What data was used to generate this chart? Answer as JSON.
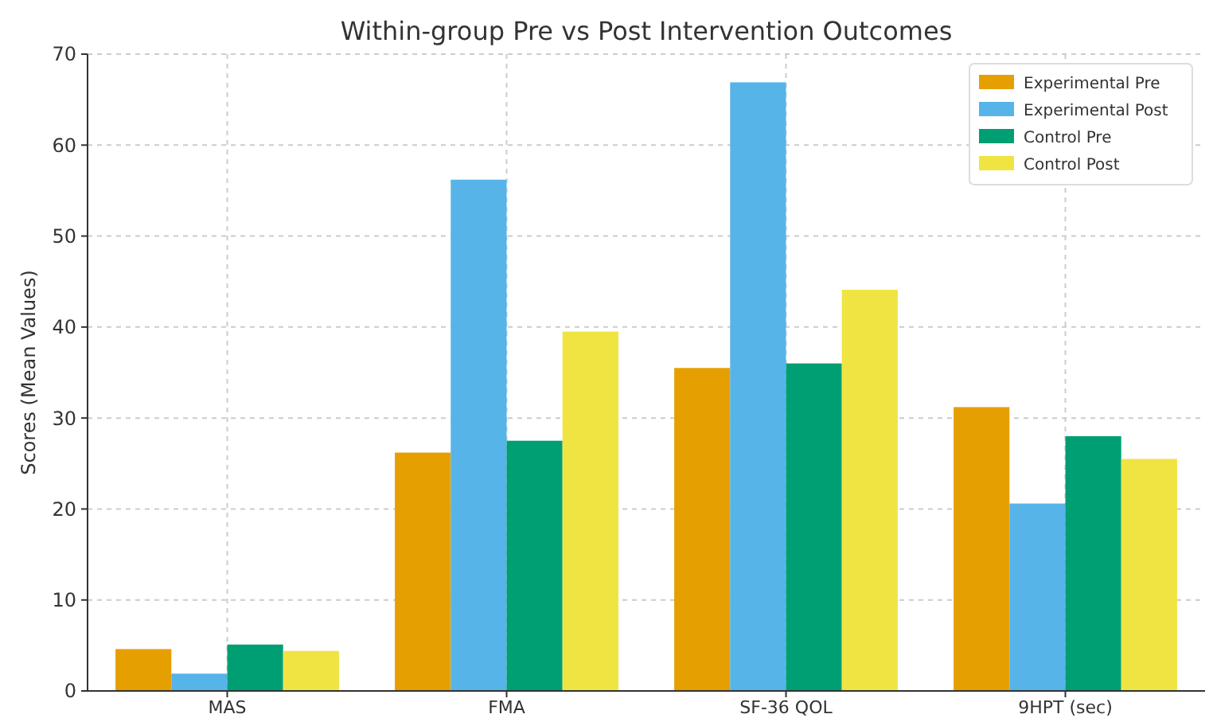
{
  "chart_data": {
    "type": "bar",
    "title": "Within-group Pre vs Post Intervention Outcomes",
    "ylabel": "Scores (Mean Values)",
    "categories": [
      "MAS",
      "FMA",
      "SF-36 QOL",
      "9HPT (sec)"
    ],
    "series": [
      {
        "name": "Experimental Pre",
        "color": "#e69f00",
        "values": [
          4.6,
          26.2,
          35.5,
          31.2
        ]
      },
      {
        "name": "Experimental Post",
        "color": "#56b4e9",
        "values": [
          1.9,
          56.2,
          66.9,
          20.6
        ]
      },
      {
        "name": "Control Pre",
        "color": "#009e73",
        "values": [
          5.1,
          27.5,
          36.0,
          28.0
        ]
      },
      {
        "name": "Control Post",
        "color": "#f0e442",
        "values": [
          4.4,
          39.5,
          44.1,
          25.5
        ]
      }
    ],
    "ylim": [
      0,
      70
    ],
    "yticks": [
      0,
      10,
      20,
      30,
      40,
      50,
      60,
      70
    ],
    "grid": true,
    "legend": "top right"
  }
}
